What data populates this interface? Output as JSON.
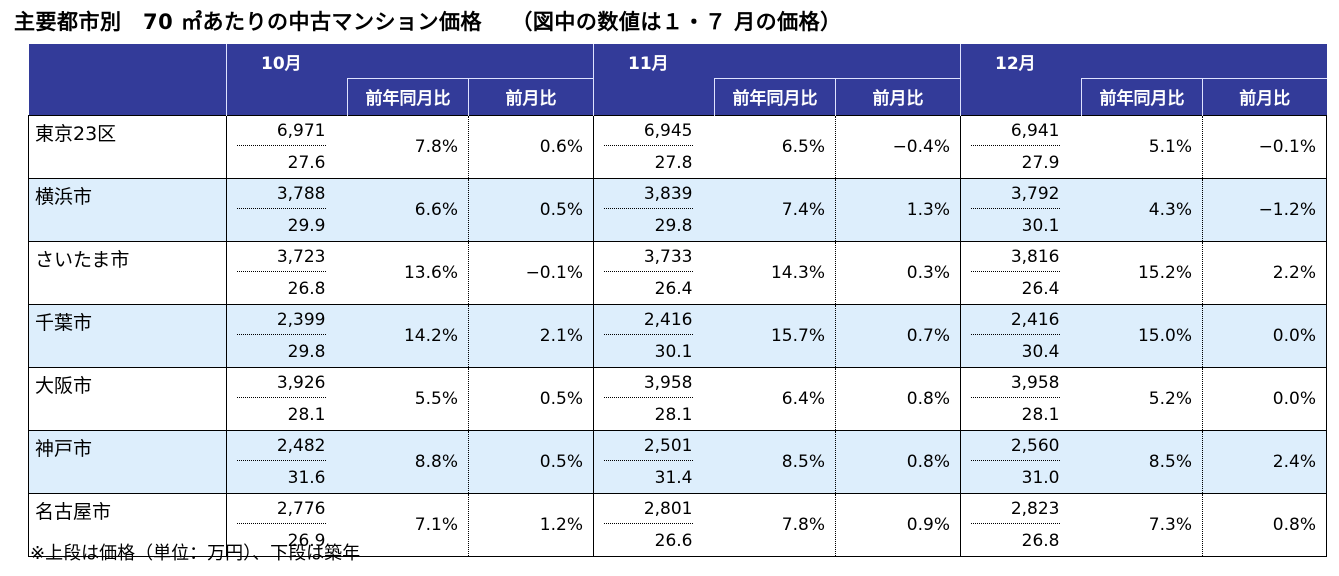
{
  "title": "主要都市別　70 ㎡あたりの中古マンション価格　 （図中の数値は１・７ 月の価格）",
  "months": [
    "10月",
    "11月",
    "12月"
  ],
  "sub_headers": [
    "前年同月比",
    "前月比"
  ],
  "rows": [
    {
      "city": "東京23区",
      "m": [
        {
          "price": "6,971",
          "age": "27.6",
          "yoy": "7.8%",
          "mom": "0.6%"
        },
        {
          "price": "6,945",
          "age": "27.8",
          "yoy": "6.5%",
          "mom": "−0.4%"
        },
        {
          "price": "6,941",
          "age": "27.9",
          "yoy": "5.1%",
          "mom": "−0.1%"
        }
      ]
    },
    {
      "city": "横浜市",
      "m": [
        {
          "price": "3,788",
          "age": "29.9",
          "yoy": "6.6%",
          "mom": "0.5%"
        },
        {
          "price": "3,839",
          "age": "29.8",
          "yoy": "7.4%",
          "mom": "1.3%"
        },
        {
          "price": "3,792",
          "age": "30.1",
          "yoy": "4.3%",
          "mom": "−1.2%"
        }
      ]
    },
    {
      "city": "さいたま市",
      "m": [
        {
          "price": "3,723",
          "age": "26.8",
          "yoy": "13.6%",
          "mom": "−0.1%"
        },
        {
          "price": "3,733",
          "age": "26.4",
          "yoy": "14.3%",
          "mom": "0.3%"
        },
        {
          "price": "3,816",
          "age": "26.4",
          "yoy": "15.2%",
          "mom": "2.2%"
        }
      ]
    },
    {
      "city": "千葉市",
      "m": [
        {
          "price": "2,399",
          "age": "29.8",
          "yoy": "14.2%",
          "mom": "2.1%"
        },
        {
          "price": "2,416",
          "age": "30.1",
          "yoy": "15.7%",
          "mom": "0.7%"
        },
        {
          "price": "2,416",
          "age": "30.4",
          "yoy": "15.0%",
          "mom": "0.0%"
        }
      ]
    },
    {
      "city": "大阪市",
      "m": [
        {
          "price": "3,926",
          "age": "28.1",
          "yoy": "5.5%",
          "mom": "0.5%"
        },
        {
          "price": "3,958",
          "age": "28.1",
          "yoy": "6.4%",
          "mom": "0.8%"
        },
        {
          "price": "3,958",
          "age": "28.1",
          "yoy": "5.2%",
          "mom": "0.0%"
        }
      ]
    },
    {
      "city": "神戸市",
      "m": [
        {
          "price": "2,482",
          "age": "31.6",
          "yoy": "8.8%",
          "mom": "0.5%"
        },
        {
          "price": "2,501",
          "age": "31.4",
          "yoy": "8.5%",
          "mom": "0.8%"
        },
        {
          "price": "2,560",
          "age": "31.0",
          "yoy": "8.5%",
          "mom": "2.4%"
        }
      ]
    },
    {
      "city": "名古屋市",
      "m": [
        {
          "price": "2,776",
          "age": "26.9",
          "yoy": "7.1%",
          "mom": "1.2%"
        },
        {
          "price": "2,801",
          "age": "26.6",
          "yoy": "7.8%",
          "mom": "0.9%"
        },
        {
          "price": "2,823",
          "age": "26.8",
          "yoy": "7.3%",
          "mom": "0.8%"
        }
      ]
    }
  ],
  "footnote": "※上段は価格（単位：万円）、下段は築年"
}
